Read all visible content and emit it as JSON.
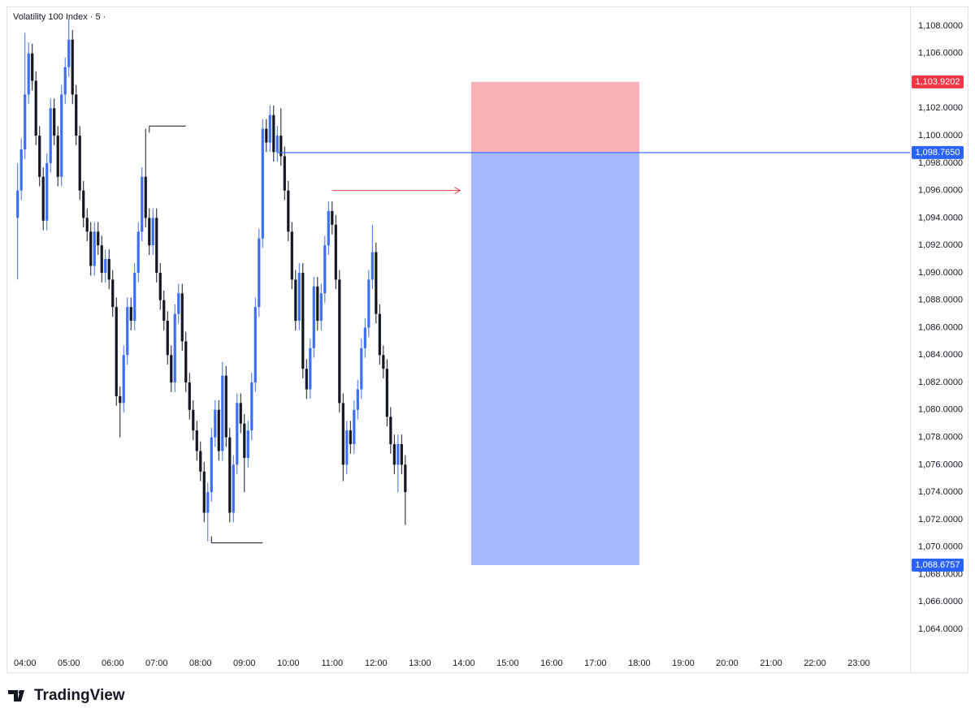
{
  "chart_data": {
    "type": "candlestick",
    "title": "Volatility 100 Index · 5 ·",
    "brand": "TradingView",
    "up_color": "#3d6ff5",
    "down_color": "#131722",
    "grid": false,
    "x": [
      "03:50",
      "03:55",
      "04:00",
      "04:05",
      "04:10",
      "04:15",
      "04:20",
      "04:25",
      "04:30",
      "04:35",
      "04:40",
      "04:45",
      "04:50",
      "04:55",
      "05:00",
      "05:05",
      "05:10",
      "05:15",
      "05:20",
      "05:25",
      "05:30",
      "05:35",
      "05:40",
      "05:45",
      "05:50",
      "05:55",
      "06:00",
      "06:05",
      "06:10",
      "06:15",
      "06:20",
      "06:25",
      "06:30",
      "06:35",
      "06:40",
      "06:45",
      "06:50",
      "06:55",
      "07:00",
      "07:05",
      "07:10",
      "07:15",
      "07:20",
      "07:25",
      "07:30",
      "07:35",
      "07:40",
      "07:45",
      "07:50",
      "07:55",
      "08:00",
      "08:05",
      "08:10",
      "08:15",
      "08:20",
      "08:25",
      "08:30",
      "08:35",
      "08:40",
      "08:45",
      "08:50",
      "08:55",
      "09:00",
      "09:05",
      "09:10",
      "09:15",
      "09:20",
      "09:25",
      "09:30",
      "09:35",
      "09:40",
      "09:45",
      "09:50",
      "09:55",
      "10:00",
      "10:05",
      "10:10",
      "10:15",
      "10:20",
      "10:25",
      "10:30",
      "10:35",
      "10:40",
      "10:45",
      "10:50",
      "10:55",
      "11:00",
      "11:05",
      "11:10",
      "11:15",
      "11:20",
      "11:25",
      "11:30",
      "11:35",
      "11:40",
      "11:45",
      "11:50",
      "11:55",
      "12:00",
      "12:05",
      "12:10",
      "12:15",
      "12:20",
      "12:25",
      "12:30",
      "12:35",
      "12:40"
    ],
    "open": [
      1094,
      1096,
      1099,
      1103,
      1106,
      1104,
      1100,
      1097,
      1093.8,
      1098,
      1102,
      1100,
      1097,
      1103,
      1105,
      1107,
      1103,
      1100,
      1096,
      1094,
      1093,
      1090.5,
      1093,
      1092,
      1090,
      1091,
      1089.5,
      1087.5,
      1081,
      1080.5,
      1084,
      1087.5,
      1086.5,
      1090,
      1093,
      1097,
      1094,
      1092,
      1094,
      1090,
      1088,
      1086.5,
      1084,
      1082,
      1087,
      1088.5,
      1085,
      1082,
      1080,
      1078.5,
      1077,
      1075.5,
      1072.5,
      1074,
      1078,
      1080,
      1077,
      1082.5,
      1078,
      1072.5,
      1076,
      1080.5,
      1079,
      1076.5,
      1078.5,
      1082,
      1087.5,
      1092.5,
      1100.5,
      1099.5,
      1101.5,
      1098.8,
      1100,
      1098.5,
      1096,
      1093,
      1089.5,
      1086.5,
      1090,
      1083,
      1081.5,
      1084.5,
      1089,
      1086.5,
      1088.5,
      1092,
      1094.5,
      1093.5,
      1089.5,
      1080.5,
      1076,
      1078.5,
      1077.5,
      1080,
      1081.5,
      1084.5,
      1086,
      1089.5,
      1091.5,
      1087,
      1084,
      1083,
      1079.5,
      1077.5,
      1076,
      1077.5,
      1076
    ],
    "high": [
      1098,
      1099.8,
      1107.5,
      1106.8,
      1106.7,
      1104.7,
      1100.7,
      1097.7,
      1098.7,
      1102.7,
      1102.7,
      1100.7,
      1103.7,
      1105.7,
      1108.5,
      1107.7,
      1103.7,
      1100.7,
      1096.7,
      1094.7,
      1093.7,
      1093.7,
      1093.7,
      1092.7,
      1091.7,
      1091.7,
      1090.2,
      1088.2,
      1081.7,
      1084.7,
      1088.2,
      1088.2,
      1090.7,
      1093.7,
      1097.7,
      1100.5,
      1094.7,
      1094.7,
      1094.7,
      1090.7,
      1088.7,
      1087.2,
      1084.7,
      1087.7,
      1089.2,
      1089.2,
      1085.7,
      1082.7,
      1080.7,
      1079.2,
      1077.7,
      1076.2,
      1074.7,
      1078.7,
      1080.7,
      1080.7,
      1083.5,
      1083.2,
      1078.7,
      1076.7,
      1081.2,
      1081.2,
      1079.7,
      1079.2,
      1082.7,
      1088.2,
      1093.2,
      1101.2,
      1101.2,
      1102.2,
      1102.2,
      1100.7,
      1102,
      1099.2,
      1096.7,
      1093.7,
      1090.2,
      1090.7,
      1090.7,
      1083.7,
      1085.2,
      1089.7,
      1089.7,
      1089.2,
      1092.7,
      1095.2,
      1095.2,
      1094.2,
      1090.2,
      1081.2,
      1079.2,
      1079.2,
      1080.7,
      1082.2,
      1085.2,
      1086.7,
      1090.2,
      1093.5,
      1092.2,
      1087.7,
      1084.7,
      1083.7,
      1080.2,
      1078.2,
      1078.2,
      1078.2,
      1076.7
    ],
    "low": [
      1089.5,
      1095.3,
      1098.3,
      1102.3,
      1103.3,
      1099.3,
      1096.3,
      1093.1,
      1093.1,
      1097.3,
      1099.3,
      1096.3,
      1096.3,
      1102.3,
      1104.3,
      1102.3,
      1099.3,
      1095.3,
      1093.3,
      1092.3,
      1089.8,
      1089.8,
      1091.3,
      1089.3,
      1089.3,
      1088.8,
      1086.8,
      1080.3,
      1078,
      1079.8,
      1083.3,
      1085.8,
      1085.8,
      1089.3,
      1092.3,
      1093.3,
      1091.3,
      1091.3,
      1089.3,
      1087.3,
      1085.8,
      1083.3,
      1081.3,
      1081.3,
      1086.3,
      1084.3,
      1081.3,
      1079.3,
      1077.8,
      1076.3,
      1074.8,
      1071.8,
      1070.4,
      1073.3,
      1077.3,
      1076.3,
      1076.3,
      1077.3,
      1071.8,
      1071.8,
      1075.3,
      1078.3,
      1074,
      1075.8,
      1077.8,
      1081.3,
      1086.8,
      1091.8,
      1098.8,
      1098.8,
      1098.1,
      1098.1,
      1097.8,
      1095.3,
      1092.3,
      1088.8,
      1085.8,
      1085.8,
      1082.3,
      1080.8,
      1080.8,
      1083.8,
      1085.8,
      1085.8,
      1087.8,
      1091.3,
      1092.8,
      1088.8,
      1079.8,
      1074.8,
      1075.3,
      1076.8,
      1076.8,
      1079.3,
      1080.8,
      1083.8,
      1085.3,
      1088.8,
      1086.3,
      1083.3,
      1082.3,
      1078.8,
      1076.8,
      1075.3,
      1074,
      1075.3,
      1071.6
    ],
    "close": [
      1096,
      1099,
      1103,
      1106,
      1104,
      1100,
      1097,
      1093.8,
      1098,
      1102,
      1100,
      1097,
      1103,
      1105,
      1107,
      1103,
      1100,
      1096,
      1094,
      1093,
      1090.5,
      1093,
      1092,
      1090,
      1091,
      1089.5,
      1087.5,
      1081,
      1080.5,
      1084,
      1087.5,
      1086.5,
      1090,
      1093,
      1097,
      1094,
      1092,
      1094,
      1090,
      1088,
      1086.5,
      1084,
      1082,
      1087,
      1088.5,
      1085,
      1082,
      1080,
      1078.5,
      1077,
      1075.5,
      1072.5,
      1074,
      1078,
      1080,
      1077,
      1082.5,
      1078,
      1072.5,
      1076,
      1080.5,
      1079,
      1076.5,
      1078.5,
      1082,
      1087.5,
      1092.5,
      1100.5,
      1099.5,
      1101.5,
      1098.8,
      1100,
      1098.5,
      1096,
      1093,
      1089.5,
      1086.5,
      1090,
      1083,
      1081.5,
      1084.5,
      1089,
      1086.5,
      1088.5,
      1092,
      1094.5,
      1093.5,
      1089.5,
      1080.5,
      1076,
      1078.5,
      1077.5,
      1080,
      1081.5,
      1084.5,
      1086,
      1089.5,
      1091.5,
      1087,
      1084,
      1083,
      1079.5,
      1077.5,
      1076,
      1077.5,
      1076,
      1074
    ],
    "xlim": [
      "03:37",
      "24:10"
    ],
    "xticks": [
      "04:00",
      "05:00",
      "06:00",
      "07:00",
      "08:00",
      "09:00",
      "10:00",
      "11:00",
      "12:00",
      "13:00",
      "14:00",
      "15:00",
      "16:00",
      "17:00",
      "18:00",
      "19:00",
      "20:00",
      "21:00",
      "22:00",
      "23:00"
    ],
    "ylim": [
      1062.52,
      1109.42
    ],
    "yticks": [
      {
        "value": 1064,
        "label": "1,064.0000"
      },
      {
        "value": 1066,
        "label": "1,066.0000"
      },
      {
        "value": 1068,
        "label": "1,068.0000"
      },
      {
        "value": 1070,
        "label": "1,070.0000"
      },
      {
        "value": 1072,
        "label": "1,072.0000"
      },
      {
        "value": 1074,
        "label": "1,074.0000"
      },
      {
        "value": 1076,
        "label": "1,076.0000"
      },
      {
        "value": 1078,
        "label": "1,078.0000"
      },
      {
        "value": 1080,
        "label": "1,080.0000"
      },
      {
        "value": 1082,
        "label": "1,082.0000"
      },
      {
        "value": 1084,
        "label": "1,084.0000"
      },
      {
        "value": 1086,
        "label": "1,086.0000"
      },
      {
        "value": 1088,
        "label": "1,088.0000"
      },
      {
        "value": 1090,
        "label": "1,090.0000"
      },
      {
        "value": 1092,
        "label": "1,092.0000"
      },
      {
        "value": 1094,
        "label": "1,094.0000"
      },
      {
        "value": 1096,
        "label": "1,096.0000"
      },
      {
        "value": 1098,
        "label": "1,098.0000"
      },
      {
        "value": 1100,
        "label": "1,100.0000"
      },
      {
        "value": 1102,
        "label": "1,102.0000"
      },
      {
        "value": 1104,
        "label": "1,104.0000"
      },
      {
        "value": 1106,
        "label": "1,106.0000"
      },
      {
        "value": 1108,
        "label": "1,108.0000"
      }
    ],
    "position": {
      "start": "14:10",
      "end": "18:00",
      "line_start": "09:45",
      "entry": {
        "value": 1098.765,
        "label": "1,098.7650"
      },
      "stop": {
        "value": 1103.9202,
        "label": "1,103.9202"
      },
      "target": {
        "value": 1068.6757,
        "label": "1,068.6757"
      },
      "line_color": "#2962ff",
      "stop_color": "#f23645",
      "target_color": "#2962ff",
      "stop_fill": "#f8b1b6",
      "target_fill": "#a5bbfe"
    },
    "levels": [
      {
        "value": 1100.7,
        "start": "06:50",
        "end": "07:40",
        "color": "#131722",
        "arrow": false
      },
      {
        "value": 1070.3,
        "start": "08:15",
        "end": "09:25",
        "color": "#131722",
        "arrow": false
      },
      {
        "value": 1096,
        "start": "11:00",
        "end": "13:55",
        "color": "#f23645",
        "arrow": true
      }
    ]
  }
}
